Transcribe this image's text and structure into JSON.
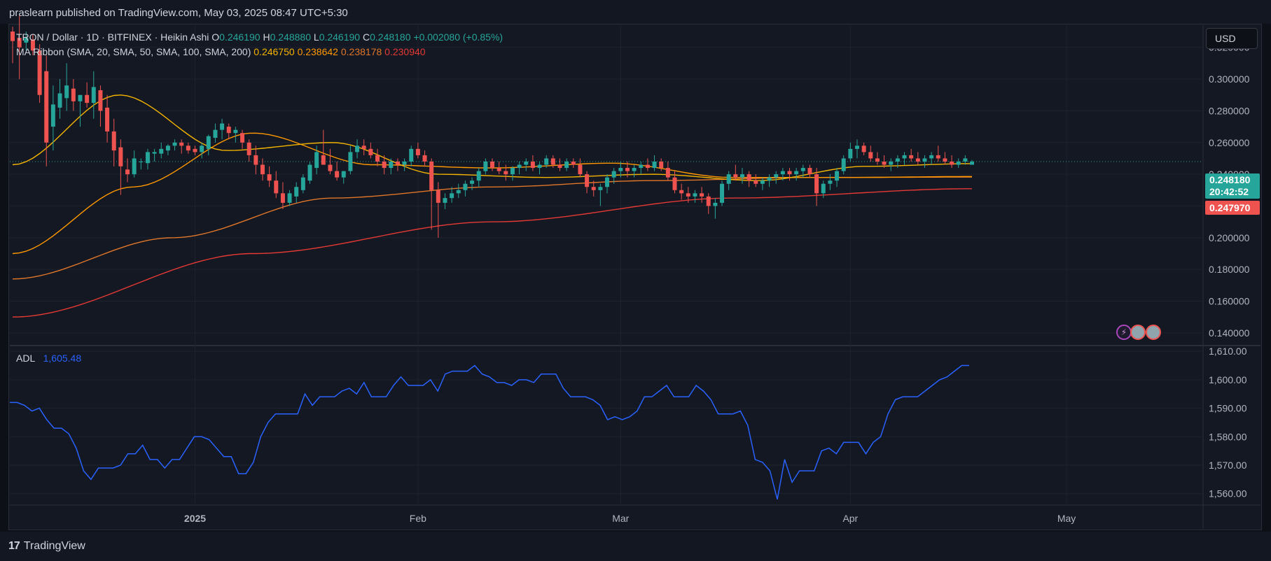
{
  "header": {
    "published_text": "praslearn published on TradingView.com, May 03, 2025 08:47 UTC+5:30"
  },
  "legend": {
    "symbol": "TRON / Dollar · 1D · BITFINEX · Heikin Ashi",
    "o_label": "O",
    "o_value": "0.246190",
    "h_label": "H",
    "h_value": "0.248880",
    "l_label": "L",
    "l_value": "0.246190",
    "c_label": "C",
    "c_value": "0.248180",
    "change": "+0.002080 (+0.85%)",
    "ma_title": "MA Ribbon (SMA, 20, SMA, 50, SMA, 100, SMA, 200)",
    "ma_values": [
      "0.246750",
      "0.238642",
      "0.238178",
      "0.230940"
    ],
    "adl_title": "ADL",
    "adl_value": "1,605.48"
  },
  "currency_button": "USD",
  "price_tags": {
    "last": "0.248180",
    "countdown": "20:42:52",
    "sma": "0.247970"
  },
  "brand": {
    "logo_mark": "17",
    "name": "TradingView"
  },
  "colors": {
    "up": "#26a69a",
    "down": "#ef5350",
    "sma20": "#f5b400",
    "sma50": "#ff9800",
    "sma100": "#e0762a",
    "sma200": "#e53935",
    "adl": "#2962ff",
    "bg": "#141822",
    "grid": "#1f2330"
  },
  "chart_data": [
    {
      "type": "candlestick",
      "title": "TRON / Dollar · 1D · BITFINEX · Heikin Ashi",
      "x_tick_labels": [
        "2025",
        "Feb",
        "Mar",
        "Apr",
        "May"
      ],
      "y_tick_labels": [
        "0.320000",
        "0.300000",
        "0.280000",
        "0.260000",
        "0.240000",
        "0.220000",
        "0.200000",
        "0.180000",
        "0.160000",
        "0.140000"
      ],
      "ylim": [
        0.132,
        0.334
      ],
      "grid": true,
      "candles": [
        [
          0.33,
          0.333,
          0.31,
          0.324
        ],
        [
          0.326,
          0.34,
          0.3,
          0.32
        ],
        [
          0.323,
          0.33,
          0.318,
          0.326
        ],
        [
          0.325,
          0.328,
          0.315,
          0.318
        ],
        [
          0.318,
          0.322,
          0.285,
          0.29
        ],
        [
          0.305,
          0.315,
          0.245,
          0.26
        ],
        [
          0.27,
          0.296,
          0.255,
          0.284
        ],
        [
          0.282,
          0.3,
          0.275,
          0.291
        ],
        [
          0.288,
          0.31,
          0.28,
          0.296
        ],
        [
          0.294,
          0.3,
          0.28,
          0.286
        ],
        [
          0.286,
          0.29,
          0.27,
          0.29
        ],
        [
          0.29,
          0.298,
          0.282,
          0.285
        ],
        [
          0.285,
          0.305,
          0.275,
          0.295
        ],
        [
          0.293,
          0.296,
          0.27,
          0.28
        ],
        [
          0.282,
          0.29,
          0.26,
          0.267
        ],
        [
          0.267,
          0.275,
          0.245,
          0.255
        ],
        [
          0.257,
          0.262,
          0.227,
          0.245
        ],
        [
          0.243,
          0.25,
          0.235,
          0.24
        ],
        [
          0.24,
          0.255,
          0.238,
          0.25
        ],
        [
          0.248,
          0.25,
          0.243,
          0.248
        ],
        [
          0.247,
          0.256,
          0.243,
          0.254
        ],
        [
          0.253,
          0.256,
          0.248,
          0.254
        ],
        [
          0.253,
          0.26,
          0.25,
          0.256
        ],
        [
          0.255,
          0.259,
          0.252,
          0.258
        ],
        [
          0.258,
          0.262,
          0.255,
          0.26
        ],
        [
          0.26,
          0.262,
          0.253,
          0.258
        ],
        [
          0.258,
          0.26,
          0.253,
          0.255
        ],
        [
          0.256,
          0.258,
          0.252,
          0.254
        ],
        [
          0.254,
          0.26,
          0.25,
          0.258
        ],
        [
          0.256,
          0.265,
          0.252,
          0.264
        ],
        [
          0.263,
          0.272,
          0.26,
          0.268
        ],
        [
          0.268,
          0.275,
          0.262,
          0.272
        ],
        [
          0.27,
          0.272,
          0.262,
          0.266
        ],
        [
          0.266,
          0.27,
          0.26,
          0.268
        ],
        [
          0.266,
          0.268,
          0.256,
          0.26
        ],
        [
          0.26,
          0.262,
          0.248,
          0.252
        ],
        [
          0.252,
          0.258,
          0.24,
          0.246
        ],
        [
          0.246,
          0.25,
          0.236,
          0.24
        ],
        [
          0.24,
          0.245,
          0.232,
          0.236
        ],
        [
          0.236,
          0.242,
          0.225,
          0.228
        ],
        [
          0.228,
          0.235,
          0.218,
          0.222
        ],
        [
          0.222,
          0.23,
          0.22,
          0.228
        ],
        [
          0.226,
          0.235,
          0.222,
          0.232
        ],
        [
          0.23,
          0.24,
          0.228,
          0.238
        ],
        [
          0.236,
          0.248,
          0.234,
          0.246
        ],
        [
          0.244,
          0.258,
          0.24,
          0.254
        ],
        [
          0.252,
          0.268,
          0.248,
          0.246
        ],
        [
          0.246,
          0.256,
          0.24,
          0.242
        ],
        [
          0.242,
          0.248,
          0.236,
          0.238
        ],
        [
          0.238,
          0.242,
          0.234,
          0.242
        ],
        [
          0.242,
          0.258,
          0.24,
          0.254
        ],
        [
          0.254,
          0.262,
          0.25,
          0.258
        ],
        [
          0.258,
          0.262,
          0.252,
          0.256
        ],
        [
          0.256,
          0.26,
          0.25,
          0.252
        ],
        [
          0.252,
          0.256,
          0.245,
          0.248
        ],
        [
          0.248,
          0.252,
          0.24,
          0.244
        ],
        [
          0.244,
          0.25,
          0.24,
          0.248
        ],
        [
          0.248,
          0.25,
          0.242,
          0.246
        ],
        [
          0.246,
          0.25,
          0.242,
          0.248
        ],
        [
          0.248,
          0.258,
          0.245,
          0.256
        ],
        [
          0.256,
          0.26,
          0.25,
          0.252
        ],
        [
          0.252,
          0.255,
          0.245,
          0.248
        ],
        [
          0.248,
          0.25,
          0.205,
          0.23
        ],
        [
          0.23,
          0.235,
          0.2,
          0.222
        ],
        [
          0.222,
          0.228,
          0.218,
          0.225
        ],
        [
          0.225,
          0.232,
          0.222,
          0.228
        ],
        [
          0.228,
          0.234,
          0.225,
          0.23
        ],
        [
          0.23,
          0.236,
          0.226,
          0.234
        ],
        [
          0.234,
          0.238,
          0.23,
          0.236
        ],
        [
          0.236,
          0.244,
          0.232,
          0.242
        ],
        [
          0.242,
          0.25,
          0.24,
          0.248
        ],
        [
          0.248,
          0.25,
          0.242,
          0.244
        ],
        [
          0.244,
          0.248,
          0.24,
          0.242
        ],
        [
          0.242,
          0.246,
          0.236,
          0.24
        ],
        [
          0.24,
          0.245,
          0.236,
          0.244
        ],
        [
          0.244,
          0.248,
          0.24,
          0.246
        ],
        [
          0.246,
          0.25,
          0.242,
          0.248
        ],
        [
          0.248,
          0.252,
          0.242,
          0.244
        ],
        [
          0.244,
          0.248,
          0.24,
          0.246
        ],
        [
          0.246,
          0.252,
          0.244,
          0.25
        ],
        [
          0.25,
          0.252,
          0.244,
          0.246
        ],
        [
          0.246,
          0.25,
          0.242,
          0.244
        ],
        [
          0.244,
          0.25,
          0.242,
          0.248
        ],
        [
          0.248,
          0.25,
          0.244,
          0.246
        ],
        [
          0.246,
          0.25,
          0.238,
          0.24
        ],
        [
          0.24,
          0.242,
          0.228,
          0.232
        ],
        [
          0.232,
          0.236,
          0.226,
          0.23
        ],
        [
          0.23,
          0.234,
          0.22,
          0.232
        ],
        [
          0.232,
          0.24,
          0.228,
          0.238
        ],
        [
          0.238,
          0.244,
          0.234,
          0.242
        ],
        [
          0.242,
          0.248,
          0.238,
          0.244
        ],
        [
          0.244,
          0.248,
          0.238,
          0.242
        ],
        [
          0.242,
          0.246,
          0.238,
          0.244
        ],
        [
          0.244,
          0.248,
          0.24,
          0.246
        ],
        [
          0.246,
          0.25,
          0.242,
          0.244
        ],
        [
          0.244,
          0.252,
          0.242,
          0.248
        ],
        [
          0.248,
          0.25,
          0.242,
          0.244
        ],
        [
          0.244,
          0.248,
          0.236,
          0.238
        ],
        [
          0.238,
          0.242,
          0.228,
          0.23
        ],
        [
          0.23,
          0.234,
          0.224,
          0.228
        ],
        [
          0.228,
          0.232,
          0.222,
          0.226
        ],
        [
          0.226,
          0.23,
          0.222,
          0.228
        ],
        [
          0.228,
          0.232,
          0.222,
          0.226
        ],
        [
          0.226,
          0.228,
          0.215,
          0.22
        ],
        [
          0.22,
          0.225,
          0.212,
          0.222
        ],
        [
          0.222,
          0.236,
          0.22,
          0.234
        ],
        [
          0.234,
          0.242,
          0.23,
          0.24
        ],
        [
          0.24,
          0.246,
          0.236,
          0.238
        ],
        [
          0.238,
          0.244,
          0.234,
          0.24
        ],
        [
          0.24,
          0.242,
          0.232,
          0.236
        ],
        [
          0.236,
          0.24,
          0.232,
          0.234
        ],
        [
          0.234,
          0.238,
          0.23,
          0.236
        ],
        [
          0.236,
          0.24,
          0.232,
          0.238
        ],
        [
          0.238,
          0.242,
          0.234,
          0.24
        ],
        [
          0.24,
          0.244,
          0.236,
          0.242
        ],
        [
          0.242,
          0.244,
          0.236,
          0.24
        ],
        [
          0.24,
          0.244,
          0.236,
          0.242
        ],
        [
          0.242,
          0.246,
          0.238,
          0.244
        ],
        [
          0.244,
          0.246,
          0.238,
          0.24
        ],
        [
          0.24,
          0.244,
          0.22,
          0.228
        ],
        [
          0.228,
          0.236,
          0.225,
          0.234
        ],
        [
          0.234,
          0.24,
          0.23,
          0.236
        ],
        [
          0.236,
          0.244,
          0.232,
          0.242
        ],
        [
          0.242,
          0.252,
          0.24,
          0.25
        ],
        [
          0.25,
          0.26,
          0.248,
          0.256
        ],
        [
          0.256,
          0.262,
          0.25,
          0.258
        ],
        [
          0.258,
          0.26,
          0.252,
          0.254
        ],
        [
          0.254,
          0.258,
          0.248,
          0.25
        ],
        [
          0.25,
          0.254,
          0.246,
          0.248
        ],
        [
          0.248,
          0.252,
          0.244,
          0.246
        ],
        [
          0.246,
          0.25,
          0.242,
          0.248
        ],
        [
          0.248,
          0.252,
          0.244,
          0.25
        ],
        [
          0.25,
          0.254,
          0.246,
          0.252
        ],
        [
          0.252,
          0.256,
          0.248,
          0.25
        ],
        [
          0.25,
          0.254,
          0.246,
          0.248
        ],
        [
          0.248,
          0.252,
          0.244,
          0.25
        ],
        [
          0.25,
          0.254,
          0.246,
          0.252
        ],
        [
          0.252,
          0.258,
          0.248,
          0.25
        ],
        [
          0.25,
          0.254,
          0.246,
          0.248
        ],
        [
          0.248,
          0.252,
          0.244,
          0.246
        ],
        [
          0.246,
          0.25,
          0.244,
          0.248
        ],
        [
          0.248,
          0.252,
          0.246,
          0.25
        ],
        [
          0.246,
          0.249,
          0.246,
          0.248
        ]
      ],
      "series": [
        {
          "name": "SMA 20",
          "values": [
            0.246,
            0.29,
            0.255,
            0.26,
            0.24,
            0.238,
            0.24,
            0.236,
            0.245,
            0.2467
          ]
        },
        {
          "name": "SMA 50",
          "values": [
            0.19,
            0.232,
            0.266,
            0.246,
            0.244,
            0.247,
            0.238,
            0.238,
            0.2386
          ]
        },
        {
          "name": "SMA 100",
          "values": [
            0.174,
            0.2,
            0.225,
            0.232,
            0.236,
            0.238,
            0.2382
          ]
        },
        {
          "name": "SMA 200",
          "values": [
            0.15,
            0.19,
            0.21,
            0.225,
            0.2309
          ]
        }
      ]
    },
    {
      "type": "line",
      "title": "ADL",
      "y_tick_labels": [
        "1,610.00",
        "1,600.00",
        "1,590.00",
        "1,580.00",
        "1,570.00",
        "1,560.00"
      ],
      "ylim": [
        1556,
        1612
      ],
      "values": [
        1592,
        1592,
        1591,
        1589,
        1590,
        1586,
        1583,
        1583,
        1581,
        1576,
        1568,
        1565,
        1569,
        1569,
        1569,
        1570,
        1574,
        1574,
        1577,
        1572,
        1572,
        1569,
        1572,
        1572,
        1576,
        1580,
        1580,
        1579,
        1576,
        1573,
        1573,
        1567,
        1567,
        1571,
        1580,
        1585,
        1588,
        1588,
        1588,
        1588,
        1595,
        1591,
        1594,
        1594,
        1594,
        1596,
        1597,
        1595,
        1599,
        1594,
        1594,
        1594,
        1598,
        1601,
        1598,
        1598,
        1598,
        1600,
        1596,
        1602,
        1603,
        1603,
        1603,
        1605,
        1602,
        1601,
        1599,
        1599,
        1598,
        1600,
        1600,
        1599,
        1602,
        1602,
        1602,
        1597,
        1594,
        1594,
        1594,
        1593,
        1591,
        1586,
        1587,
        1586,
        1587,
        1589,
        1594,
        1594,
        1596,
        1598,
        1594,
        1594,
        1594,
        1598,
        1596,
        1593,
        1588,
        1588,
        1588,
        1589,
        1584,
        1572,
        1571,
        1568,
        1558,
        1572,
        1564,
        1568,
        1568,
        1568,
        1575,
        1576,
        1574,
        1578,
        1578,
        1578,
        1574,
        1578,
        1580,
        1588,
        1593,
        1594,
        1594,
        1594,
        1596,
        1598,
        1600,
        1601,
        1603,
        1605,
        1605
      ]
    }
  ]
}
